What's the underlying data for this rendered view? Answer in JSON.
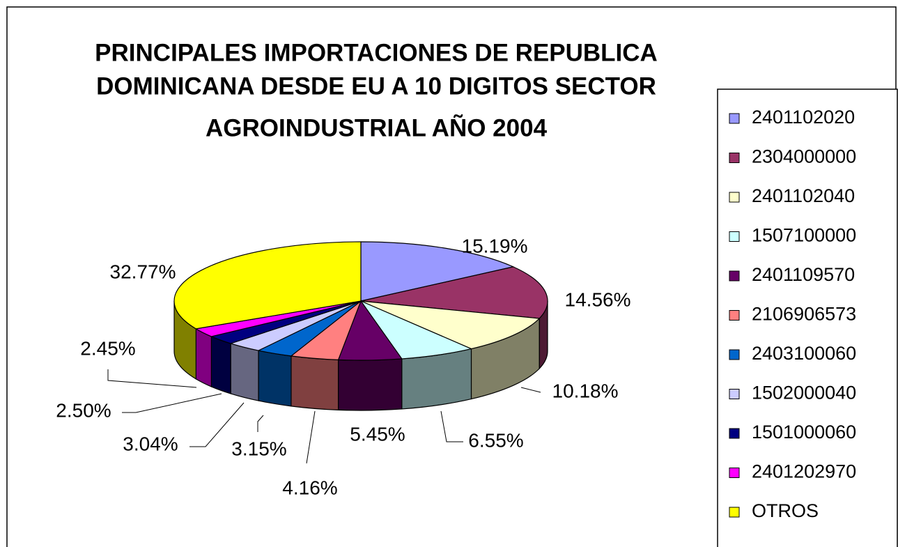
{
  "chart_data": {
    "type": "pie3d",
    "title": [
      "PRINCIPALES IMPORTACIONES DE REPUBLICA",
      "DOMINICANA DESDE EU A 10 DIGITOS SECTOR",
      "AGROINDUSTRIAL AÑO 2004"
    ],
    "categories": [
      "2401102020",
      "2304000000",
      "2401102040",
      "1507100000",
      "2401109570",
      "2106906573",
      "2403100060",
      "1502000040",
      "1501000060",
      "2401202970",
      "OTROS"
    ],
    "values": [
      15.19,
      14.56,
      10.18,
      6.55,
      5.45,
      4.16,
      3.15,
      3.04,
      2.5,
      2.45,
      32.77
    ],
    "value_labels": [
      "15.19%",
      "14.56%",
      "10.18%",
      "6.55%",
      "5.45%",
      "4.16%",
      "3.15%",
      "3.04%",
      "2.50%",
      "2.45%",
      "32.77%"
    ],
    "colors": [
      "#9999ff",
      "#993366",
      "#ffffcc",
      "#ccffff",
      "#660066",
      "#ff8080",
      "#0066cc",
      "#ccccff",
      "#000080",
      "#ff00ff",
      "#ffff00"
    ],
    "legend": "right"
  }
}
